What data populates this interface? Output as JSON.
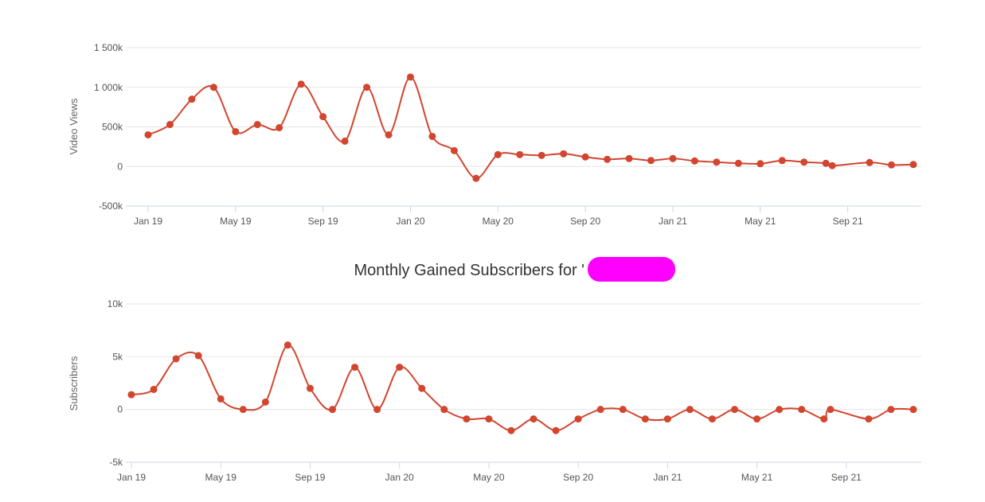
{
  "chart_data": [
    {
      "type": "line",
      "title": "",
      "xlabel": "",
      "ylabel": "Video Views",
      "ylim": [
        -500000,
        1500000
      ],
      "y_ticks": [
        -500000,
        0,
        500000,
        1000000,
        1500000
      ],
      "y_tick_labels": [
        "-500k",
        "0",
        "500k",
        "1 000k",
        "1 500k"
      ],
      "x_ticks": [
        "2019-01",
        "2019-05",
        "2019-09",
        "2020-01",
        "2020-05",
        "2020-09",
        "2021-01",
        "2021-05",
        "2021-09"
      ],
      "x_tick_labels": [
        "Jan 19",
        "May 19",
        "Sep 19",
        "Jan 20",
        "May 20",
        "Sep 20",
        "Jan 21",
        "May 21",
        "Sep 21"
      ],
      "color": "#d2452f",
      "grid": true,
      "series": [
        {
          "points": [
            [
              "2019-01-01",
              400000
            ],
            [
              "2019-02-01",
              530000
            ],
            [
              "2019-03-01",
              850000
            ],
            [
              "2019-04-01",
              1000000
            ],
            [
              "2019-05-01",
              440000
            ],
            [
              "2019-06-01",
              530000
            ],
            [
              "2019-07-01",
              490000
            ],
            [
              "2019-08-01",
              1040000
            ],
            [
              "2019-09-01",
              630000
            ],
            [
              "2019-10-01",
              320000
            ],
            [
              "2019-11-01",
              1000000
            ],
            [
              "2019-12-01",
              400000
            ],
            [
              "2020-01-01",
              1130000
            ],
            [
              "2020-02-01",
              380000
            ],
            [
              "2020-03-01",
              200000
            ],
            [
              "2020-04-01",
              -150000
            ],
            [
              "2020-05-01",
              150000
            ],
            [
              "2020-06-01",
              150000
            ],
            [
              "2020-07-01",
              140000
            ],
            [
              "2020-08-01",
              160000
            ],
            [
              "2020-09-01",
              120000
            ],
            [
              "2020-10-01",
              90000
            ],
            [
              "2020-11-01",
              100000
            ],
            [
              "2020-12-01",
              75000
            ],
            [
              "2021-01-01",
              100000
            ],
            [
              "2021-02-01",
              70000
            ],
            [
              "2021-03-01",
              55000
            ],
            [
              "2021-04-01",
              40000
            ],
            [
              "2021-05-01",
              35000
            ],
            [
              "2021-06-01",
              75000
            ],
            [
              "2021-07-01",
              55000
            ],
            [
              "2021-08-01",
              40000
            ],
            [
              "2021-08-10",
              10000
            ],
            [
              "2021-10-01",
              50000
            ],
            [
              "2021-11-01",
              20000
            ],
            [
              "2021-12-01",
              25000
            ]
          ]
        }
      ]
    },
    {
      "type": "line",
      "title": "Monthly Gained Subscribers for '",
      "xlabel": "",
      "ylabel": "Subscribers",
      "ylim": [
        -5000,
        10000
      ],
      "y_ticks": [
        -5000,
        0,
        5000,
        10000
      ],
      "y_tick_labels": [
        "-5k",
        "0",
        "5k",
        "10k"
      ],
      "x_ticks": [
        "2019-01",
        "2019-05",
        "2019-09",
        "2020-01",
        "2020-05",
        "2020-09",
        "2021-01",
        "2021-05",
        "2021-09"
      ],
      "x_tick_labels": [
        "Jan 19",
        "May 19",
        "Sep 19",
        "Jan 20",
        "May 20",
        "Sep 20",
        "Jan 21",
        "May 21",
        "Sep 21"
      ],
      "color": "#d2452f",
      "grid": true,
      "redaction_color": "#ff00ff",
      "series": [
        {
          "points": [
            [
              "2019-01-01",
              1400
            ],
            [
              "2019-02-01",
              1900
            ],
            [
              "2019-03-01",
              4800
            ],
            [
              "2019-04-01",
              5100
            ],
            [
              "2019-05-01",
              1000
            ],
            [
              "2019-06-01",
              0
            ],
            [
              "2019-07-01",
              700
            ],
            [
              "2019-08-01",
              6100
            ],
            [
              "2019-09-01",
              2000
            ],
            [
              "2019-10-01",
              0
            ],
            [
              "2019-11-01",
              4000
            ],
            [
              "2019-12-01",
              0
            ],
            [
              "2020-01-01",
              4000
            ],
            [
              "2020-02-01",
              2000
            ],
            [
              "2020-03-01",
              0
            ],
            [
              "2020-04-01",
              -900
            ],
            [
              "2020-05-01",
              -900
            ],
            [
              "2020-06-01",
              -2000
            ],
            [
              "2020-07-01",
              -900
            ],
            [
              "2020-08-01",
              -2000
            ],
            [
              "2020-09-01",
              -900
            ],
            [
              "2020-10-01",
              0
            ],
            [
              "2020-11-01",
              0
            ],
            [
              "2020-12-01",
              -900
            ],
            [
              "2021-01-01",
              -900
            ],
            [
              "2021-02-01",
              0
            ],
            [
              "2021-03-01",
              -900
            ],
            [
              "2021-04-01",
              0
            ],
            [
              "2021-05-01",
              -900
            ],
            [
              "2021-06-01",
              0
            ],
            [
              "2021-07-01",
              0
            ],
            [
              "2021-08-01",
              -900
            ],
            [
              "2021-08-10",
              0
            ],
            [
              "2021-10-01",
              -900
            ],
            [
              "2021-11-01",
              0
            ],
            [
              "2021-12-01",
              0
            ]
          ]
        }
      ]
    }
  ]
}
